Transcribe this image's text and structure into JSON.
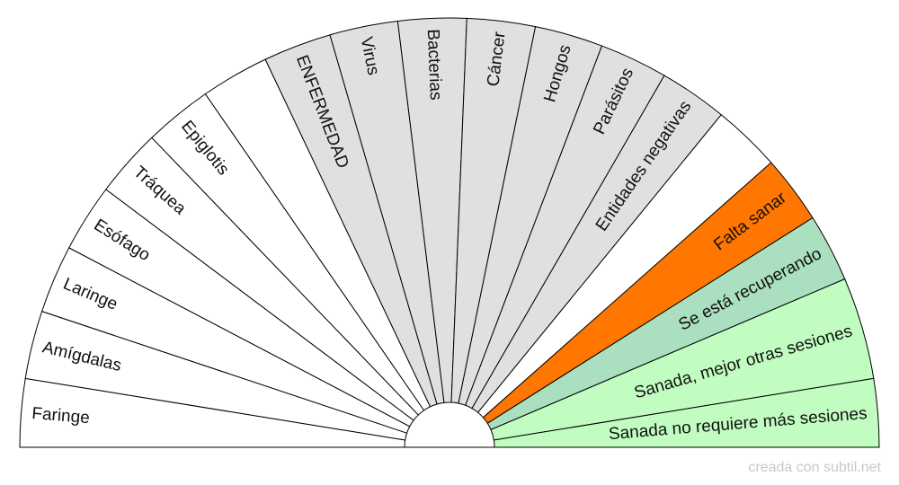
{
  "chart": {
    "segments": [
      {
        "label": "Faringe",
        "fill": "#ffffff"
      },
      {
        "label": "Amígdalas",
        "fill": "#ffffff"
      },
      {
        "label": "Laringe",
        "fill": "#ffffff"
      },
      {
        "label": "Esófago",
        "fill": "#ffffff"
      },
      {
        "label": "Tráquea",
        "fill": "#ffffff"
      },
      {
        "label": "Epiglotis",
        "fill": "#ffffff"
      },
      {
        "label": "",
        "fill": "#ffffff"
      },
      {
        "label": "ENFERMEDAD",
        "fill": "#e0e0e0"
      },
      {
        "label": "Virus",
        "fill": "#e0e0e0"
      },
      {
        "label": "Bacterias",
        "fill": "#e0e0e0"
      },
      {
        "label": "Cáncer",
        "fill": "#e0e0e0"
      },
      {
        "label": "Hongos",
        "fill": "#e0e0e0"
      },
      {
        "label": "Parásitos",
        "fill": "#e0e0e0"
      },
      {
        "label": "Entidades negativas",
        "fill": "#e0e0e0"
      },
      {
        "label": "",
        "fill": "#ffffff"
      },
      {
        "label": "Falta sanar",
        "fill": "#ff7700"
      },
      {
        "label": "Se está recuperando",
        "fill": "#aadfbf"
      },
      {
        "label": "Sanada, mejor otras sesiones",
        "fill": "#c1fdc1"
      },
      {
        "label": "Sanada no requiere más sesiones",
        "fill": "#c1fdc1"
      }
    ]
  },
  "footer": {
    "credit": "creada con subtil.net"
  }
}
